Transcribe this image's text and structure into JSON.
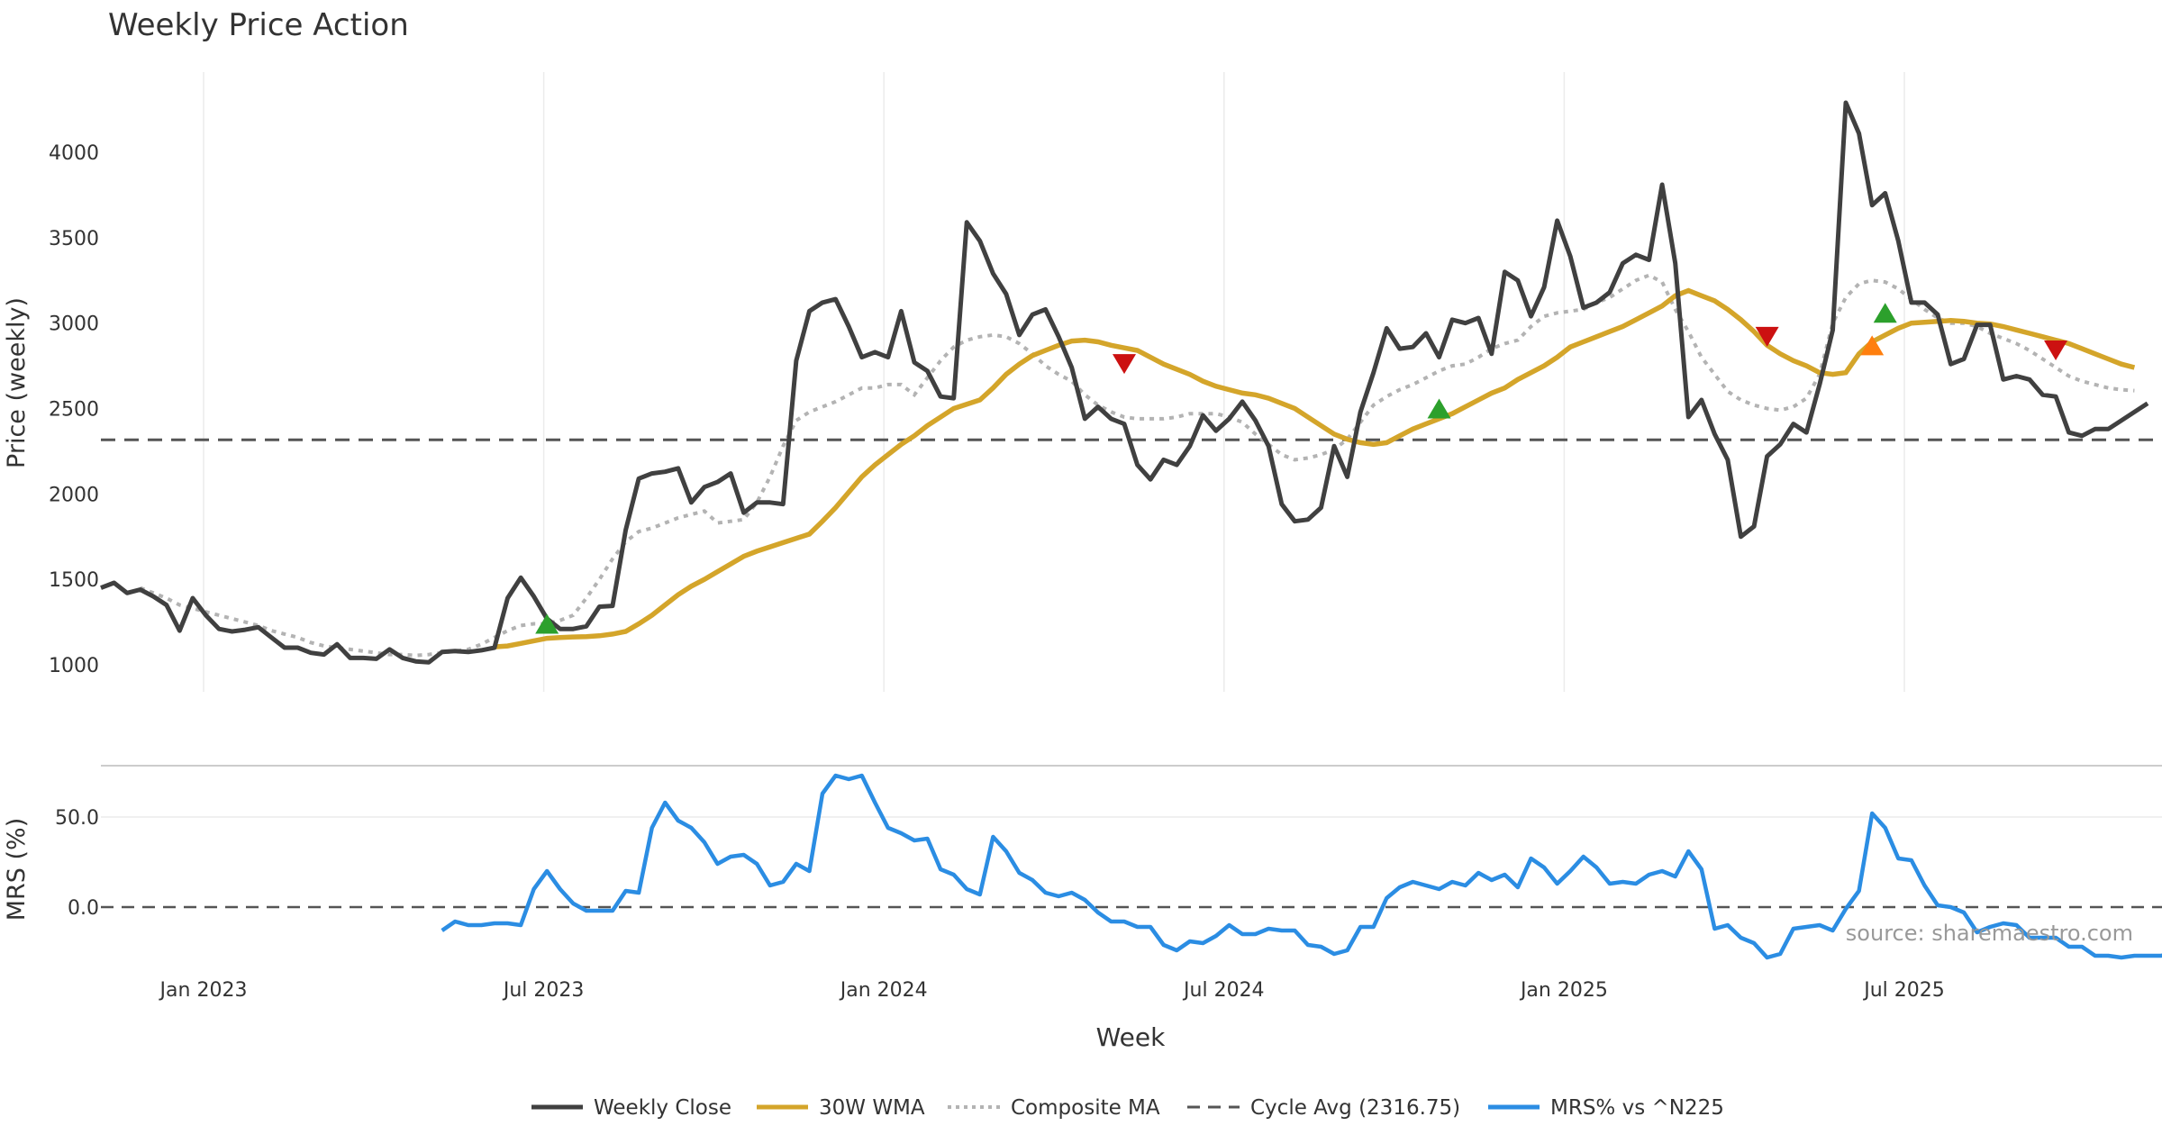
{
  "chart_data": {
    "type": "line",
    "title": "Weekly Price Action",
    "xlabel": "Week",
    "source": "source: sharemaestro.com",
    "x_ticks": [
      "Jan 2023",
      "Jul 2023",
      "Jan 2024",
      "Jul 2024",
      "Jan 2025",
      "Jul 2025"
    ],
    "x_start_offset": -7,
    "weeks_total": 156,
    "price_panel": {
      "ylabel": "Price (weekly)",
      "ylim": [
        880,
        4450
      ],
      "yticks": [
        1000,
        1500,
        2000,
        2500,
        3000,
        3500,
        4000
      ],
      "cycle_avg": 2316.75,
      "weekly_close": [
        1450,
        1480,
        1420,
        1440,
        1400,
        1350,
        1200,
        1390,
        1290,
        1210,
        1195,
        1205,
        1220,
        1160,
        1100,
        1100,
        1070,
        1060,
        1120,
        1040,
        1040,
        1035,
        1090,
        1040,
        1020,
        1015,
        1075,
        1080,
        1075,
        1085,
        1100,
        1390,
        1510,
        1400,
        1270,
        1210,
        1210,
        1225,
        1340,
        1345,
        1790,
        2090,
        2120,
        2130,
        2150,
        1950,
        2040,
        2070,
        2120,
        1890,
        1950,
        1950,
        1940,
        2780,
        3070,
        3120,
        3140,
        2980,
        2800,
        2830,
        2800,
        3070,
        2770,
        2720,
        2570,
        2560,
        3590,
        3480,
        3290,
        3170,
        2930,
        3050,
        3080,
        2920,
        2740,
        2440,
        2510,
        2440,
        2410,
        2170,
        2085,
        2200,
        2170,
        2280,
        2460,
        2370,
        2440,
        2540,
        2430,
        2280,
        1940,
        1840,
        1850,
        1920,
        2280,
        2100,
        2480,
        2710,
        2970,
        2850,
        2860,
        2940,
        2800,
        3020,
        3000,
        3030,
        2820,
        3300,
        3250,
        3040,
        3210,
        3600,
        3390,
        3090,
        3120,
        3180,
        3350,
        3400,
        3370,
        3810,
        3350,
        2450,
        2550,
        2350,
        2200,
        1750,
        1810,
        2220,
        2290,
        2410,
        2360,
        2640,
        2960,
        4290,
        4110,
        3690,
        3760,
        3480,
        3120,
        3120,
        3050,
        2760,
        2790,
        2990,
        2990,
        2670,
        2690,
        2670,
        2580,
        2570,
        2360,
        2340,
        2380,
        2380,
        2430,
        2480,
        2530
      ],
      "wma30_start": 30,
      "wma30": [
        1105,
        1110,
        1125,
        1140,
        1155,
        1160,
        1163,
        1165,
        1170,
        1180,
        1195,
        1240,
        1290,
        1350,
        1410,
        1460,
        1500,
        1545,
        1590,
        1635,
        1665,
        1690,
        1715,
        1740,
        1765,
        1840,
        1920,
        2010,
        2100,
        2170,
        2230,
        2290,
        2340,
        2400,
        2450,
        2500,
        2525,
        2550,
        2620,
        2700,
        2760,
        2810,
        2840,
        2870,
        2895,
        2900,
        2890,
        2870,
        2855,
        2840,
        2800,
        2760,
        2730,
        2700,
        2660,
        2630,
        2610,
        2590,
        2580,
        2560,
        2530,
        2500,
        2450,
        2400,
        2350,
        2320,
        2300,
        2290,
        2300,
        2340,
        2380,
        2410,
        2440,
        2470,
        2510,
        2550,
        2590,
        2620,
        2670,
        2710,
        2750,
        2800,
        2860,
        2890,
        2920,
        2950,
        2980,
        3020,
        3060,
        3100,
        3160,
        3190,
        3160,
        3130,
        3080,
        3020,
        2950,
        2870,
        2820,
        2780,
        2750,
        2710,
        2700,
        2710,
        2820,
        2890,
        2930,
        2970,
        3000,
        3005,
        3010,
        3015,
        3010,
        3000,
        2995,
        2980,
        2960,
        2940,
        2920,
        2900,
        2880,
        2850,
        2820,
        2790,
        2760,
        2740
      ]
    },
    "composite_ma_start": 3,
    "composite_ma": [
      1450,
      1420,
      1390,
      1350,
      1330,
      1310,
      1290,
      1270,
      1250,
      1230,
      1200,
      1180,
      1160,
      1130,
      1110,
      1100,
      1090,
      1080,
      1070,
      1060,
      1060,
      1055,
      1060,
      1070,
      1080,
      1090,
      1120,
      1160,
      1200,
      1230,
      1240,
      1240,
      1260,
      1290,
      1390,
      1500,
      1620,
      1720,
      1780,
      1800,
      1830,
      1860,
      1880,
      1900,
      1830,
      1840,
      1850,
      1950,
      2100,
      2280,
      2430,
      2480,
      2510,
      2540,
      2580,
      2620,
      2620,
      2640,
      2640,
      2580,
      2680,
      2780,
      2860,
      2900,
      2920,
      2930,
      2920,
      2880,
      2820,
      2750,
      2700,
      2660,
      2580,
      2520,
      2480,
      2450,
      2440,
      2440,
      2440,
      2450,
      2470,
      2470,
      2470,
      2450,
      2420,
      2350,
      2290,
      2230,
      2200,
      2210,
      2230,
      2260,
      2320,
      2420,
      2520,
      2570,
      2610,
      2640,
      2680,
      2720,
      2750,
      2760,
      2800,
      2850,
      2880,
      2900,
      2980,
      3040,
      3060,
      3070,
      3080,
      3120,
      3150,
      3200,
      3250,
      3280,
      3240,
      3080,
      2950,
      2800,
      2700,
      2600,
      2550,
      2520,
      2500,
      2490,
      2510,
      2560,
      2700,
      3000,
      3150,
      3230,
      3250,
      3240,
      3200,
      3140,
      3080,
      3030,
      3000,
      3000,
      2980,
      2940,
      2910,
      2880,
      2840,
      2790,
      2740,
      2690,
      2660,
      2640,
      2620,
      2610,
      2605
    ],
    "markers": [
      {
        "type": "buy",
        "week": 34,
        "value": 1240,
        "color": "#2ca02c"
      },
      {
        "type": "sell",
        "week": 78,
        "value": 2760,
        "color": "#cc1111"
      },
      {
        "type": "buy",
        "week": 102,
        "value": 2500,
        "color": "#2ca02c"
      },
      {
        "type": "sell",
        "week": 127,
        "value": 2920,
        "color": "#cc1111"
      },
      {
        "type": "warn",
        "week": 135,
        "value": 2870,
        "color": "#ff7f0e"
      },
      {
        "type": "buy",
        "week": 136,
        "value": 3060,
        "color": "#2ca02c"
      },
      {
        "type": "sell",
        "week": 149,
        "value": 2840,
        "color": "#cc1111"
      }
    ],
    "mrs_panel": {
      "ylabel": "MRS (%)",
      "ylim": [
        -36,
        80
      ],
      "yticks": [
        "50.0",
        "0.0"
      ],
      "ytick_values": [
        50,
        0
      ],
      "mrs_start": 26,
      "mrs": [
        -13,
        -8,
        -10,
        -10,
        -9,
        -9,
        -10,
        10,
        20,
        10,
        2,
        -2,
        -2,
        -2,
        9,
        8,
        44,
        58,
        48,
        44,
        36,
        24,
        28,
        29,
        24,
        12,
        14,
        24,
        20,
        63,
        73,
        71,
        73,
        58,
        44,
        41,
        37,
        38,
        21,
        18,
        10,
        7,
        39,
        31,
        19,
        15,
        8,
        6,
        8,
        4,
        -3,
        -8,
        -8,
        -11,
        -11,
        -21,
        -24,
        -19,
        -20,
        -16,
        -10,
        -15,
        -15,
        -12,
        -13,
        -13,
        -21,
        -22,
        -26,
        -24,
        -11,
        -11,
        5,
        11,
        14,
        12,
        10,
        14,
        12,
        19,
        15,
        18,
        11,
        27,
        22,
        13,
        20,
        28,
        22,
        13,
        14,
        13,
        18,
        20,
        17,
        31,
        21,
        -12,
        -10,
        -17,
        -20,
        -28,
        -26,
        -12,
        -11,
        -10,
        -13,
        -1,
        9,
        52,
        44,
        27,
        26,
        12,
        1,
        0,
        -3,
        -14,
        -11,
        -9,
        -10,
        -17,
        -17,
        -17,
        -22,
        -22,
        -27,
        -27,
        -28,
        -27,
        -27,
        -27,
        -26
      ]
    },
    "series_colors": {
      "weekly_close": "#404040",
      "wma30": "#d4a52a",
      "composite_ma": "#b3b3b3",
      "cycle_avg": "#555555",
      "mrs": "#2b8de3"
    },
    "legend": [
      "Weekly Close",
      "30W WMA",
      "Composite MA",
      "Cycle Avg (2316.75)",
      "MRS% vs ^N225"
    ]
  }
}
